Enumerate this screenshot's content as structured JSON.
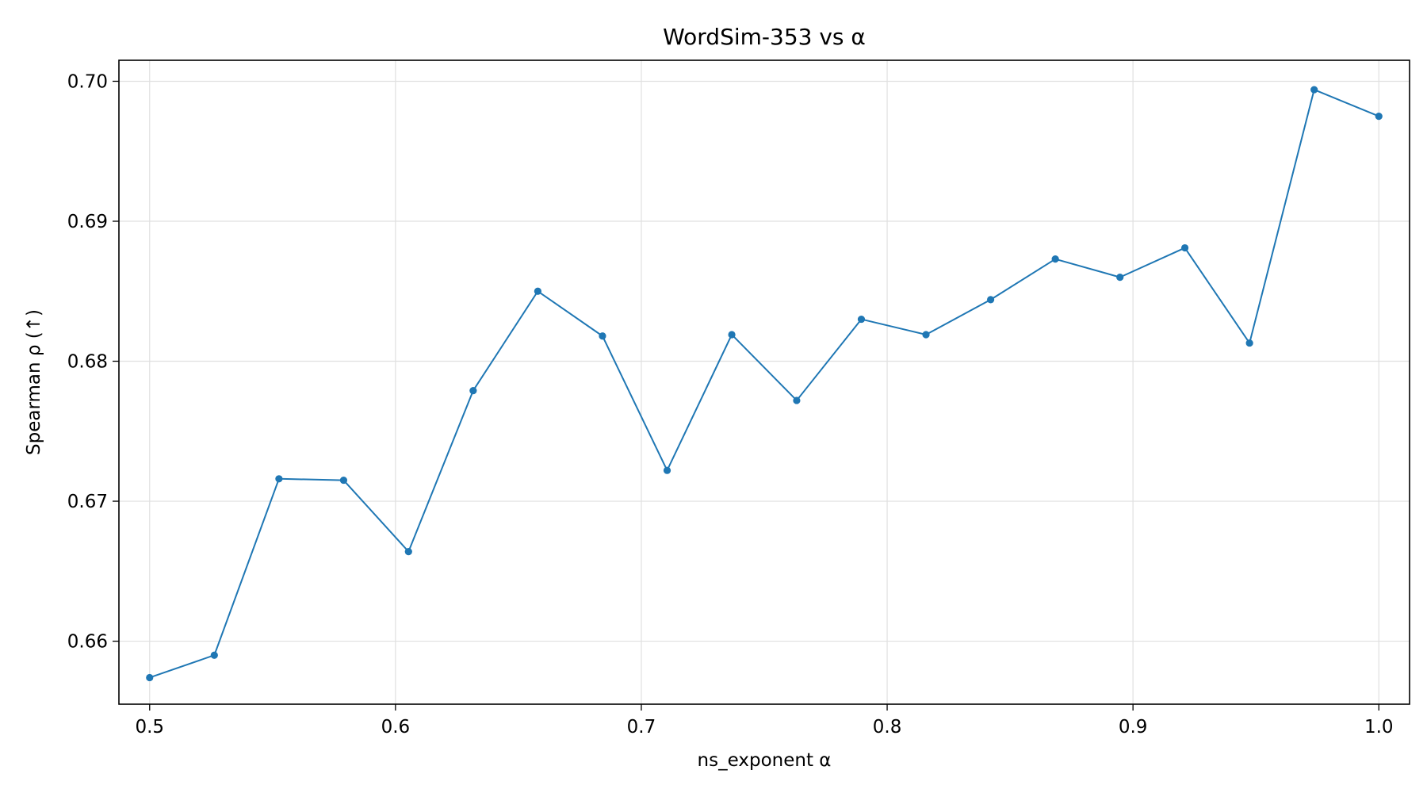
{
  "chart_data": {
    "type": "line",
    "title": "WordSim-353 vs α",
    "xlabel": "ns_exponent α",
    "ylabel": "Spearman ρ (↑)",
    "xlim": [
      0.4875,
      1.0125
    ],
    "ylim": [
      0.6555,
      0.7015
    ],
    "xticks": [
      0.5,
      0.6,
      0.7,
      0.8,
      0.9,
      1.0
    ],
    "xtick_labels": [
      "0.5",
      "0.6",
      "0.7",
      "0.8",
      "0.9",
      "1.0"
    ],
    "yticks": [
      0.66,
      0.67,
      0.68,
      0.69,
      0.7
    ],
    "ytick_labels": [
      "0.66",
      "0.67",
      "0.68",
      "0.69",
      "0.70"
    ],
    "grid": true,
    "series": [
      {
        "color": "#1f77b4",
        "x": [
          0.5,
          0.5263,
          0.5526,
          0.5789,
          0.6053,
          0.6316,
          0.6579,
          0.6842,
          0.7105,
          0.7368,
          0.7632,
          0.7895,
          0.8158,
          0.8421,
          0.8684,
          0.8947,
          0.9211,
          0.9474,
          0.9737,
          1.0
        ],
        "y": [
          0.6574,
          0.659,
          0.6716,
          0.6715,
          0.6664,
          0.6779,
          0.685,
          0.6818,
          0.6722,
          0.6819,
          0.6772,
          0.683,
          0.6819,
          0.6844,
          0.6873,
          0.686,
          0.6881,
          0.6813,
          0.6994,
          0.6975
        ]
      }
    ]
  }
}
